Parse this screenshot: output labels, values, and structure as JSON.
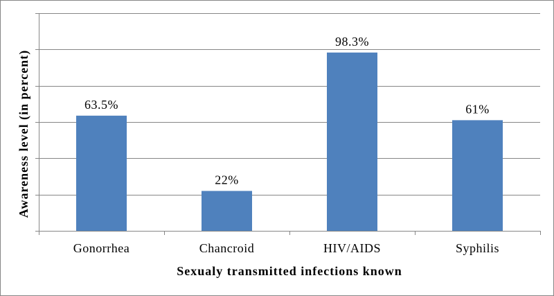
{
  "chart_data": {
    "type": "bar",
    "categories": [
      "Gonorrhea",
      "Chancroid",
      "HIV/AIDS",
      "Syphilis"
    ],
    "values": [
      63.5,
      22,
      98.3,
      61
    ],
    "data_labels": [
      "63.5%",
      "22%",
      "98.3%",
      "61%"
    ],
    "title": "",
    "xlabel": "Sexualy transmitted infections known",
    "ylabel": "Awareness level (in percent)",
    "ylim": [
      0,
      120
    ],
    "ytick_step": 20,
    "show_y_tick_labels": false,
    "grid": true,
    "bar_color": "#4f81bd",
    "grid_color": "#868686"
  }
}
